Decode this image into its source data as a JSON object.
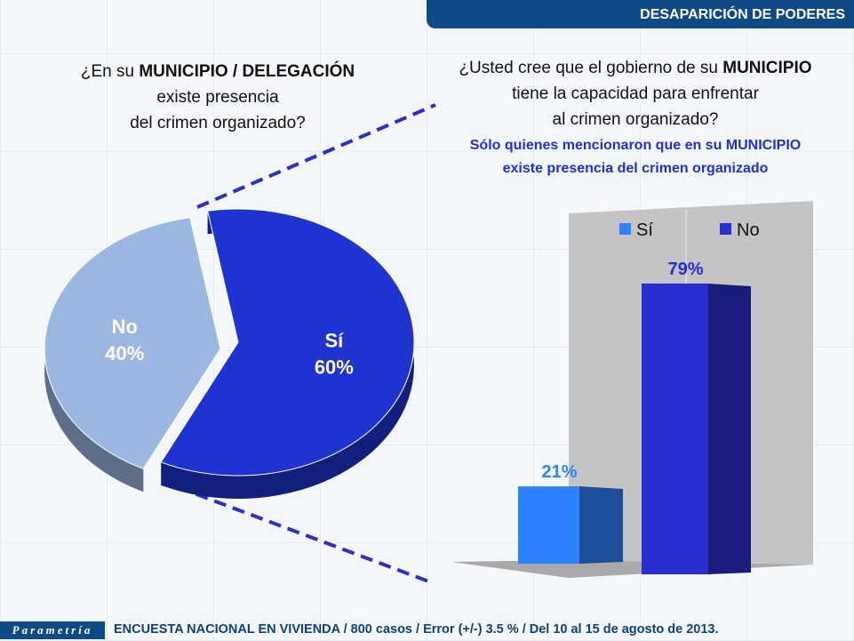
{
  "header": {
    "title": "DESAPARICIÓN DE PODERES"
  },
  "left_question": {
    "pre": "¿En su ",
    "bold": "MUNICIPIO / DELEGACIÓN",
    "line2": "existe presencia",
    "line3": "del crimen organizado?"
  },
  "right_question": {
    "pre": "¿Usted cree que el gobierno de su ",
    "bold": "MUNICIPIO",
    "line2": "tiene la capacidad para enfrentar",
    "line3": "al crimen organizado?",
    "sub1": "Sólo quienes mencionaron que en su MUNICIPIO",
    "sub2": "existe presencia del crimen organizado"
  },
  "chart_data": [
    {
      "type": "pie",
      "title": "¿En su MUNICIPIO / DELEGACIÓN existe presencia del crimen organizado?",
      "slices": [
        {
          "label": "Sí",
          "value": 60,
          "display": "60%",
          "color": "#1f33d0"
        },
        {
          "label": "No",
          "value": 40,
          "display": "40%",
          "color": "#9cb7e2"
        }
      ]
    },
    {
      "type": "bar",
      "title": "¿Usted cree que el gobierno de su MUNICIPIO tiene la capacidad para enfrentar al crimen organizado?",
      "categories": [
        "Sí",
        "No"
      ],
      "values": [
        21,
        79
      ],
      "labels": [
        "21%",
        "79%"
      ],
      "colors": [
        "#2e82ff",
        "#2a2ed0"
      ],
      "legend": [
        "Sí",
        "No"
      ],
      "legend_position": "top",
      "ylim": [
        0,
        100
      ]
    }
  ],
  "footer": {
    "logo": "Parametría",
    "text": "ENCUESTA NACIONAL EN VIVIENDA / 800 casos / Error (+/-) 3.5 % / Del 10 al 15 de agosto de 2013."
  }
}
